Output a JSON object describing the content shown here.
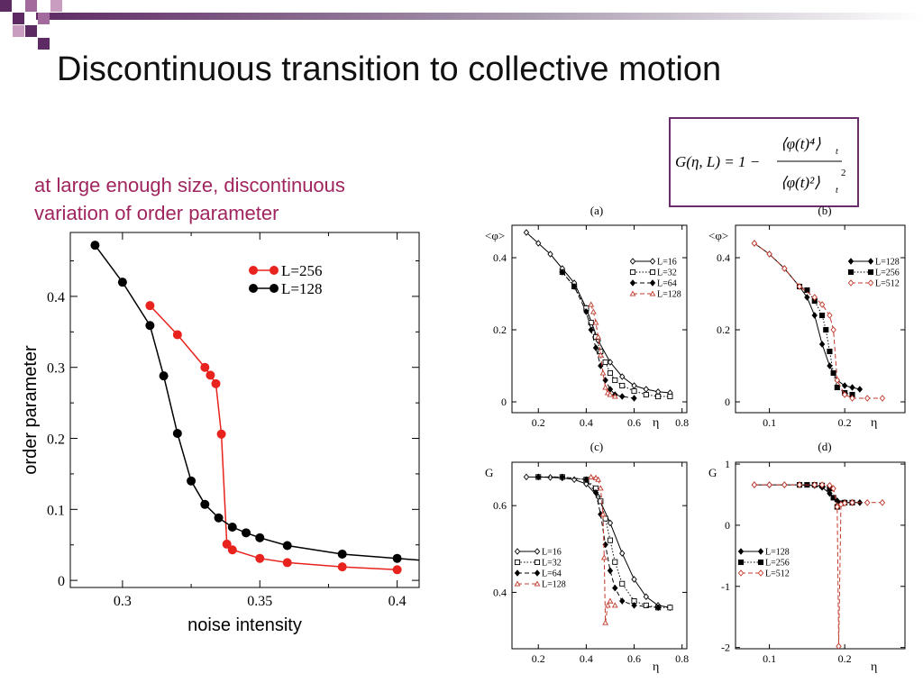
{
  "slide": {
    "title": "Discontinuous transition to collective motion",
    "subtitle": "at large enough size, discontinuous variation of order parameter",
    "formula": {
      "lhs": "G(η, L) = 1 −",
      "numerator": "⟨φ(t)⁴⟩t",
      "denominator": "⟨φ(t)²⟩t²"
    },
    "colors": {
      "accent": "#6b2c6b",
      "subtitle": "#a0255e",
      "red": "#e8221c",
      "black": "#000000"
    }
  },
  "chart_data": [
    {
      "type": "line",
      "title": "",
      "xlabel": "noise intensity",
      "ylabel": "order parameter",
      "xlim": [
        0.281,
        0.408
      ],
      "ylim": [
        -0.01,
        0.49
      ],
      "xticks": [
        0.3,
        0.35,
        0.4
      ],
      "xticklabels": [
        "0.3",
        "0.35",
        "0.4"
      ],
      "yticks": [
        0,
        0.1,
        0.2,
        0.3,
        0.4
      ],
      "yticklabels": [
        "0",
        "0.1",
        "0.2",
        "0.3",
        "0.4"
      ],
      "legend_position": "top-right",
      "series": [
        {
          "name": "L=256",
          "color": "#e8221c",
          "x": [
            0.31,
            0.32,
            0.33,
            0.332,
            0.334,
            0.336,
            0.338,
            0.34,
            0.35,
            0.36,
            0.38,
            0.4
          ],
          "y": [
            0.387,
            0.346,
            0.3,
            0.289,
            0.277,
            0.206,
            0.051,
            0.043,
            0.031,
            0.025,
            0.019,
            0.015
          ]
        },
        {
          "name": "L=128",
          "color": "#000000",
          "x": [
            0.29,
            0.3,
            0.31,
            0.315,
            0.32,
            0.325,
            0.33,
            0.335,
            0.34,
            0.345,
            0.35,
            0.36,
            0.38,
            0.4,
            0.41
          ],
          "y": [
            0.472,
            0.42,
            0.359,
            0.288,
            0.207,
            0.14,
            0.107,
            0.088,
            0.075,
            0.067,
            0.06,
            0.049,
            0.037,
            0.031,
            0.028
          ]
        }
      ]
    },
    {
      "type": "line",
      "panel_label": "(a)",
      "ylabel": "<φ>",
      "xlabel": "η",
      "xlim": [
        0.09,
        0.82
      ],
      "ylim": [
        -0.03,
        0.49
      ],
      "xticks": [
        0.2,
        0.4,
        0.6,
        0.8
      ],
      "xticklabels": [
        "0.2",
        "0.4",
        "0.6",
        "0.8"
      ],
      "yticks": [
        0,
        0.2,
        0.4
      ],
      "yticklabels": [
        "0",
        "0.2",
        "0.4"
      ],
      "legend_position": "top-right",
      "series": [
        {
          "name": "L=16",
          "color": "#000000",
          "dash": "",
          "marker": "diamond-open",
          "x": [
            0.15,
            0.2,
            0.25,
            0.3,
            0.35,
            0.4,
            0.45,
            0.5,
            0.55,
            0.6,
            0.65,
            0.7,
            0.75
          ],
          "y": [
            0.47,
            0.44,
            0.41,
            0.37,
            0.33,
            0.26,
            0.17,
            0.11,
            0.07,
            0.045,
            0.035,
            0.028,
            0.025
          ]
        },
        {
          "name": "L=32",
          "color": "#000000",
          "dash": "1.5,2",
          "marker": "square-open",
          "x": [
            0.3,
            0.35,
            0.4,
            0.42,
            0.44,
            0.46,
            0.48,
            0.5,
            0.52,
            0.55,
            0.6,
            0.65,
            0.7,
            0.75
          ],
          "y": [
            0.36,
            0.32,
            0.26,
            0.22,
            0.18,
            0.14,
            0.11,
            0.08,
            0.06,
            0.045,
            0.03,
            0.02,
            0.015,
            0.015
          ]
        },
        {
          "name": "L=64",
          "color": "#000000",
          "dash": "5,3",
          "marker": "diamond-filled",
          "x": [
            0.3,
            0.35,
            0.4,
            0.42,
            0.44,
            0.46,
            0.48,
            0.5,
            0.52,
            0.55,
            0.6
          ],
          "y": [
            0.36,
            0.32,
            0.25,
            0.2,
            0.15,
            0.1,
            0.06,
            0.035,
            0.02,
            0.015,
            0.01
          ]
        },
        {
          "name": "L=128",
          "color": "#c0392b",
          "dash": "5,3",
          "marker": "triangle-open",
          "x": [
            0.42,
            0.43,
            0.44,
            0.45,
            0.46,
            0.47,
            0.48,
            0.49,
            0.5,
            0.52
          ],
          "y": [
            0.27,
            0.25,
            0.22,
            0.18,
            0.13,
            0.08,
            0.04,
            0.025,
            0.02,
            0.015
          ]
        }
      ]
    },
    {
      "type": "line",
      "panel_label": "(b)",
      "ylabel": "<φ>",
      "xlabel": "η",
      "xlim": [
        0.055,
        0.28
      ],
      "ylim": [
        -0.03,
        0.49
      ],
      "xticks": [
        0.1,
        0.2
      ],
      "xticklabels": [
        "0.1",
        "0.2"
      ],
      "yticks": [
        0,
        0.2,
        0.4
      ],
      "yticklabels": [
        "0",
        "0.2",
        "0.4"
      ],
      "legend_position": "top-right",
      "series": [
        {
          "name": "L=128",
          "color": "#000000",
          "dash": "",
          "marker": "diamond-filled",
          "x": [
            0.08,
            0.1,
            0.12,
            0.14,
            0.15,
            0.16,
            0.17,
            0.18,
            0.19,
            0.2,
            0.21,
            0.22
          ],
          "y": [
            0.44,
            0.41,
            0.37,
            0.32,
            0.29,
            0.24,
            0.16,
            0.1,
            0.06,
            0.045,
            0.04,
            0.035
          ]
        },
        {
          "name": "L=256",
          "color": "#000000",
          "dash": "1.5,2",
          "marker": "square-filled",
          "x": [
            0.14,
            0.15,
            0.16,
            0.17,
            0.175,
            0.18,
            0.185,
            0.19,
            0.2,
            0.21
          ],
          "y": [
            0.32,
            0.31,
            0.28,
            0.24,
            0.2,
            0.14,
            0.08,
            0.04,
            0.025,
            0.02
          ]
        },
        {
          "name": "L=512",
          "color": "#c0392b",
          "dash": "5,3",
          "marker": "diamond-open",
          "x": [
            0.08,
            0.1,
            0.12,
            0.14,
            0.16,
            0.17,
            0.18,
            0.185,
            0.19,
            0.2,
            0.21,
            0.23,
            0.25
          ],
          "y": [
            0.44,
            0.41,
            0.37,
            0.32,
            0.29,
            0.27,
            0.24,
            0.2,
            0.06,
            0.02,
            0.01,
            0.01,
            0.01
          ]
        }
      ]
    },
    {
      "type": "line",
      "panel_label": "(c)",
      "ylabel": "G",
      "xlabel": "η",
      "xlim": [
        0.09,
        0.82
      ],
      "ylim": [
        0.27,
        0.7
      ],
      "xticks": [
        0.2,
        0.4,
        0.6,
        0.8
      ],
      "xticklabels": [
        "0.2",
        "0.4",
        "0.6",
        "0.8"
      ],
      "yticks": [
        0.4,
        0.6
      ],
      "yticklabels": [
        "0.4",
        "0.6"
      ],
      "legend_position": "bottom-left",
      "series": [
        {
          "name": "L=16",
          "color": "#000000",
          "dash": "",
          "marker": "diamond-open",
          "x": [
            0.15,
            0.2,
            0.25,
            0.3,
            0.35,
            0.4,
            0.45,
            0.5,
            0.55,
            0.6,
            0.65,
            0.7,
            0.75
          ],
          "y": [
            0.666,
            0.666,
            0.665,
            0.664,
            0.66,
            0.65,
            0.62,
            0.56,
            0.49,
            0.43,
            0.39,
            0.37,
            0.365
          ]
        },
        {
          "name": "L=32",
          "color": "#000000",
          "dash": "1.5,2",
          "marker": "square-open",
          "x": [
            0.2,
            0.3,
            0.4,
            0.44,
            0.46,
            0.48,
            0.5,
            0.52,
            0.55,
            0.6,
            0.65,
            0.7,
            0.75
          ],
          "y": [
            0.666,
            0.666,
            0.66,
            0.64,
            0.61,
            0.57,
            0.52,
            0.47,
            0.42,
            0.38,
            0.37,
            0.365,
            0.365
          ]
        },
        {
          "name": "L=64",
          "color": "#000000",
          "dash": "5,3",
          "marker": "diamond-filled",
          "x": [
            0.2,
            0.3,
            0.4,
            0.44,
            0.46,
            0.48,
            0.5,
            0.52,
            0.55,
            0.6,
            0.7
          ],
          "y": [
            0.666,
            0.666,
            0.66,
            0.63,
            0.58,
            0.51,
            0.45,
            0.41,
            0.38,
            0.37,
            0.365
          ]
        },
        {
          "name": "L=128",
          "color": "#c0392b",
          "dash": "5,3",
          "marker": "triangle-open",
          "x": [
            0.42,
            0.44,
            0.45,
            0.46,
            0.47,
            0.475,
            0.48,
            0.49,
            0.5,
            0.52
          ],
          "y": [
            0.666,
            0.664,
            0.66,
            0.64,
            0.58,
            0.48,
            0.33,
            0.37,
            0.38,
            0.37
          ]
        }
      ]
    },
    {
      "type": "line",
      "panel_label": "(d)",
      "ylabel": "G",
      "xlabel": "η",
      "xlim": [
        0.055,
        0.28
      ],
      "ylim": [
        -2.02,
        1.03
      ],
      "xticks": [
        0.1,
        0.2
      ],
      "xticklabels": [
        "0.1",
        "0.2"
      ],
      "yticks": [
        -2,
        -1,
        0,
        1
      ],
      "yticklabels": [
        "-2",
        "-1",
        "0",
        "1"
      ],
      "legend_position": "bottom-left",
      "series": [
        {
          "name": "L=128",
          "color": "#000000",
          "dash": "",
          "marker": "diamond-filled",
          "x": [
            0.08,
            0.1,
            0.12,
            0.14,
            0.16,
            0.17,
            0.18,
            0.19,
            0.2,
            0.21,
            0.22
          ],
          "y": [
            0.66,
            0.66,
            0.66,
            0.66,
            0.65,
            0.62,
            0.52,
            0.4,
            0.37,
            0.37,
            0.37
          ]
        },
        {
          "name": "L=256",
          "color": "#000000",
          "dash": "1.5,2",
          "marker": "square-filled",
          "x": [
            0.14,
            0.15,
            0.16,
            0.17,
            0.18,
            0.185,
            0.19,
            0.195,
            0.2,
            0.21
          ],
          "y": [
            0.66,
            0.66,
            0.66,
            0.65,
            0.6,
            0.45,
            0.3,
            0.36,
            0.37,
            0.37
          ]
        },
        {
          "name": "L=512",
          "color": "#c0392b",
          "dash": "5,3",
          "marker": "diamond-open",
          "x": [
            0.08,
            0.1,
            0.12,
            0.14,
            0.16,
            0.17,
            0.18,
            0.185,
            0.19,
            0.192,
            0.195,
            0.2,
            0.21,
            0.23,
            0.25
          ],
          "y": [
            0.66,
            0.66,
            0.66,
            0.66,
            0.66,
            0.66,
            0.65,
            0.6,
            0.3,
            -1.98,
            0.34,
            0.36,
            0.37,
            0.37,
            0.37
          ]
        }
      ]
    }
  ]
}
